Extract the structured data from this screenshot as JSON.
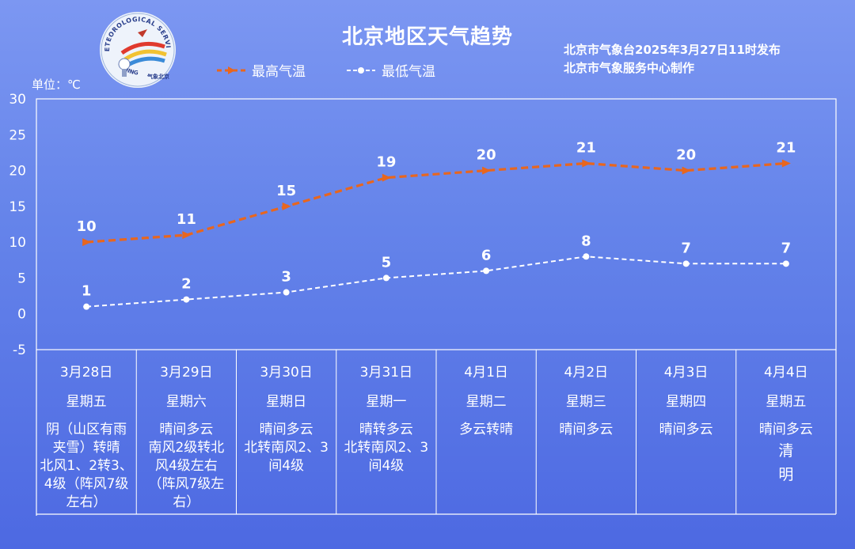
{
  "title": "北京地区天气趋势",
  "publisher": [
    "北京市气象台2025年3月27日11时发布",
    "北京市气象服务中心制作"
  ],
  "unit_label": "单位：℃",
  "logo_texts": [
    "METEOROLOGICAL SERVICE",
    "BEIJING",
    "气象北京"
  ],
  "colors": {
    "high": "#e8661e",
    "low": "#ffffff",
    "grid": "#ffffff"
  },
  "chart_data": {
    "type": "line",
    "title": "北京地区天气趋势",
    "ylabel": "单位：℃",
    "ylim": [
      -5,
      30
    ],
    "yticks": [
      30,
      25,
      20,
      15,
      10,
      5,
      0,
      -5
    ],
    "categories": [
      "3月28日",
      "3月29日",
      "3月30日",
      "3月31日",
      "4月1日",
      "4月2日",
      "4月3日",
      "4月4日"
    ],
    "series": [
      {
        "name": "最高气温",
        "values": [
          10,
          11,
          15,
          19,
          20,
          21,
          20,
          21
        ],
        "style": "dashed",
        "marker": "arrow",
        "color": "#e8661e"
      },
      {
        "name": "最低气温",
        "values": [
          1,
          2,
          3,
          5,
          6,
          8,
          7,
          7
        ],
        "style": "dashed",
        "marker": "dot",
        "color": "#ffffff"
      }
    ],
    "legend_position": "top"
  },
  "days": [
    {
      "date": "3月28日",
      "weekday": "星期五",
      "weather": [
        "阴（山区有雨",
        "夹雪）转晴",
        "北风1、2转3、",
        "4级（阵风7级",
        "左右）"
      ]
    },
    {
      "date": "3月29日",
      "weekday": "星期六",
      "weather": [
        "晴间多云",
        "南风2级转北",
        "风4级左右",
        "（阵风7级左",
        "右）"
      ]
    },
    {
      "date": "3月30日",
      "weekday": "星期日",
      "weather": [
        "晴间多云",
        "北转南风2、3",
        "间4级"
      ]
    },
    {
      "date": "3月31日",
      "weekday": "星期一",
      "weather": [
        "晴转多云",
        "北转南风2、3",
        "间4级"
      ]
    },
    {
      "date": "4月1日",
      "weekday": "星期二",
      "weather": [
        "多云转晴"
      ]
    },
    {
      "date": "4月2日",
      "weekday": "星期三",
      "weather": [
        "晴间多云"
      ]
    },
    {
      "date": "4月3日",
      "weekday": "星期四",
      "weather": [
        "晴间多云"
      ]
    },
    {
      "date": "4月4日",
      "weekday": "星期五",
      "weather": [
        "晴间多云",
        "清",
        "明"
      ]
    }
  ]
}
